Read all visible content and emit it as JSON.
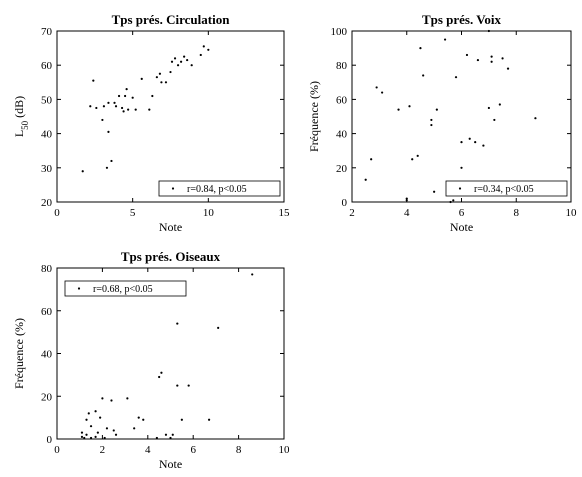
{
  "chart_data": [
    {
      "type": "scatter",
      "title": "Tps prés. Circulation",
      "xlabel": "Note",
      "ylabel": "L",
      "ylabel_sub": "50",
      "ylabel_suffix": " (dB)",
      "xlim": [
        0,
        15
      ],
      "ylim": [
        20,
        70
      ],
      "xticks": [
        0,
        5,
        10,
        15
      ],
      "yticks": [
        20,
        30,
        40,
        50,
        60,
        70
      ],
      "legend": {
        "label": "r=0.84, p<0.05",
        "position": "bottom-right"
      },
      "points": [
        [
          1.7,
          29
        ],
        [
          2.2,
          48
        ],
        [
          2.4,
          55.5
        ],
        [
          2.6,
          47.5
        ],
        [
          3.0,
          44
        ],
        [
          3.1,
          48
        ],
        [
          3.3,
          30
        ],
        [
          3.4,
          49
        ],
        [
          3.4,
          40.5
        ],
        [
          3.6,
          32
        ],
        [
          3.8,
          49
        ],
        [
          3.9,
          48
        ],
        [
          4.1,
          51
        ],
        [
          4.3,
          47.5
        ],
        [
          4.4,
          46.5
        ],
        [
          4.5,
          51
        ],
        [
          4.6,
          53
        ],
        [
          4.7,
          47
        ],
        [
          5.0,
          50.5
        ],
        [
          5.2,
          47
        ],
        [
          5.6,
          56
        ],
        [
          6.1,
          47
        ],
        [
          6.3,
          51
        ],
        [
          6.6,
          56.5
        ],
        [
          6.8,
          57.5
        ],
        [
          6.9,
          55
        ],
        [
          7.2,
          55
        ],
        [
          7.5,
          58
        ],
        [
          7.6,
          61
        ],
        [
          7.8,
          62
        ],
        [
          8.0,
          60
        ],
        [
          8.2,
          61
        ],
        [
          8.4,
          62.5
        ],
        [
          8.6,
          61.5
        ],
        [
          8.9,
          60
        ],
        [
          9.5,
          63
        ],
        [
          9.7,
          65.5
        ],
        [
          10.0,
          64.5
        ]
      ]
    },
    {
      "type": "scatter",
      "title": "Tps prés. Voix",
      "xlabel": "Note",
      "ylabel": "Fréquence (%)",
      "xlim": [
        2,
        10
      ],
      "ylim": [
        0,
        100
      ],
      "xticks": [
        2,
        4,
        6,
        8,
        10
      ],
      "yticks": [
        0,
        20,
        40,
        60,
        80,
        100
      ],
      "legend": {
        "label": "r=0.34, p<0.05",
        "position": "bottom-right"
      },
      "points": [
        [
          2.5,
          13
        ],
        [
          2.7,
          25
        ],
        [
          2.9,
          67
        ],
        [
          3.1,
          64
        ],
        [
          3.7,
          54
        ],
        [
          4.0,
          2
        ],
        [
          4.0,
          1
        ],
        [
          4.1,
          56
        ],
        [
          4.2,
          25
        ],
        [
          4.4,
          27
        ],
        [
          4.5,
          90
        ],
        [
          4.6,
          74
        ],
        [
          4.9,
          45
        ],
        [
          4.9,
          48
        ],
        [
          5.0,
          6
        ],
        [
          5.1,
          54
        ],
        [
          5.4,
          95
        ],
        [
          5.6,
          6
        ],
        [
          5.6,
          0
        ],
        [
          5.7,
          1
        ],
        [
          5.8,
          73
        ],
        [
          6.0,
          20
        ],
        [
          6.0,
          35
        ],
        [
          6.2,
          86
        ],
        [
          6.3,
          37
        ],
        [
          6.5,
          35
        ],
        [
          6.6,
          83
        ],
        [
          6.8,
          33
        ],
        [
          7.0,
          100
        ],
        [
          7.0,
          55
        ],
        [
          7.1,
          82
        ],
        [
          7.1,
          85
        ],
        [
          7.2,
          48
        ],
        [
          7.4,
          57
        ],
        [
          7.5,
          84
        ],
        [
          7.7,
          78
        ],
        [
          8.7,
          49
        ]
      ]
    },
    {
      "type": "scatter",
      "title": "Tps prés. Oiseaux",
      "xlabel": "Note",
      "ylabel": "Fréquence (%)",
      "xlim": [
        0,
        10
      ],
      "ylim": [
        0,
        80
      ],
      "xticks": [
        0,
        2,
        4,
        6,
        8,
        10
      ],
      "yticks": [
        0,
        20,
        40,
        60,
        80
      ],
      "legend": {
        "label": "r=0.68, p<0.05",
        "position": "top-left"
      },
      "points": [
        [
          1.1,
          3
        ],
        [
          1.1,
          1
        ],
        [
          1.2,
          0.5
        ],
        [
          1.3,
          9
        ],
        [
          1.3,
          2
        ],
        [
          1.4,
          12
        ],
        [
          1.5,
          6
        ],
        [
          1.5,
          0.5
        ],
        [
          1.7,
          13
        ],
        [
          1.7,
          1
        ],
        [
          1.8,
          3
        ],
        [
          1.9,
          10
        ],
        [
          2.0,
          19
        ],
        [
          2.1,
          0.5
        ],
        [
          2.2,
          5
        ],
        [
          2.4,
          18
        ],
        [
          2.5,
          4
        ],
        [
          2.6,
          2
        ],
        [
          3.1,
          19
        ],
        [
          3.4,
          5
        ],
        [
          3.6,
          10
        ],
        [
          3.8,
          9
        ],
        [
          4.4,
          0.5
        ],
        [
          4.5,
          29
        ],
        [
          4.6,
          31
        ],
        [
          4.8,
          2
        ],
        [
          5.0,
          0.5
        ],
        [
          5.1,
          2
        ],
        [
          5.3,
          54
        ],
        [
          5.3,
          25
        ],
        [
          5.5,
          9
        ],
        [
          5.8,
          25
        ],
        [
          6.7,
          9
        ],
        [
          7.1,
          52
        ],
        [
          8.6,
          77
        ]
      ]
    }
  ]
}
